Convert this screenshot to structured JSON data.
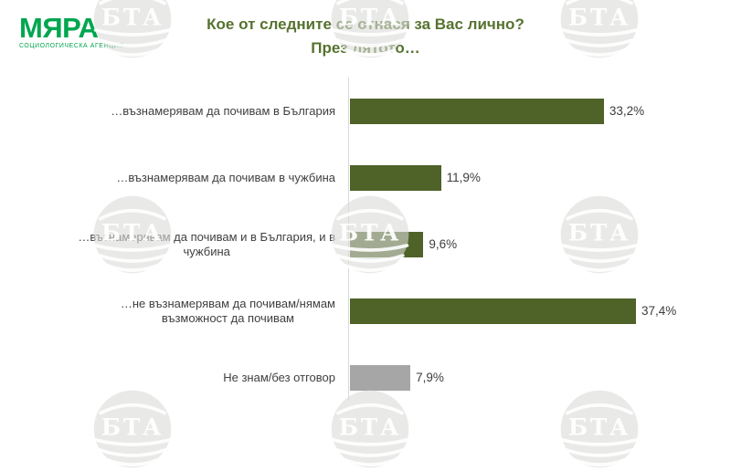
{
  "logo": {
    "name": "МЯРА",
    "subtitle": "СОЦИОЛОГИЧЕСКА АГЕНЦИЯ"
  },
  "title": {
    "line1": "Кое от следните се отнася за Вас лично?",
    "line2": "През лятото…"
  },
  "watermark": {
    "text": "БТА"
  },
  "colors": {
    "green": "#4f6228",
    "gray": "#a6a6a6",
    "title_green": "#56722f",
    "logo_green": "#00a64f",
    "axis_line": "#d9d9d9",
    "label_text": "#404040"
  },
  "chart_data": {
    "type": "bar",
    "orientation": "horizontal",
    "title": "Кое от следните се отнася за Вас лично? През лятото…",
    "xlabel": "",
    "ylabel": "",
    "xlim": [
      0,
      45
    ],
    "grid": false,
    "legend": false,
    "value_suffix": "%",
    "categories": [
      "…възнамерявам да почивам в България",
      "…възнамерявам да почивам в чужбина",
      "…възнамерявам да почивам и в България, и в чужбина",
      "…не възнамерявам да почивам/нямам възможност да почивам",
      "Не знам/без отговор"
    ],
    "values": [
      33.2,
      11.9,
      9.6,
      37.4,
      7.9
    ],
    "rows": [
      {
        "label_lines": [
          "…възнамерявам да почивам в България"
        ],
        "value": 33.2,
        "value_label": "33,2%",
        "color": "green"
      },
      {
        "label_lines": [
          "…възнамерявам да почивам в чужбина"
        ],
        "value": 11.9,
        "value_label": "11,9%",
        "color": "green"
      },
      {
        "label_lines": [
          "…възнамерявам да почивам и в България, и в",
          "чужбина"
        ],
        "value": 9.6,
        "value_label": "9,6%",
        "color": "green"
      },
      {
        "label_lines": [
          "…не възнамерявам да почивам/нямам",
          "възможност да почивам"
        ],
        "value": 37.4,
        "value_label": "37,4%",
        "color": "green"
      },
      {
        "label_lines": [
          "Не знам/без отговор"
        ],
        "value": 7.9,
        "value_label": "7,9%",
        "color": "gray"
      }
    ]
  }
}
